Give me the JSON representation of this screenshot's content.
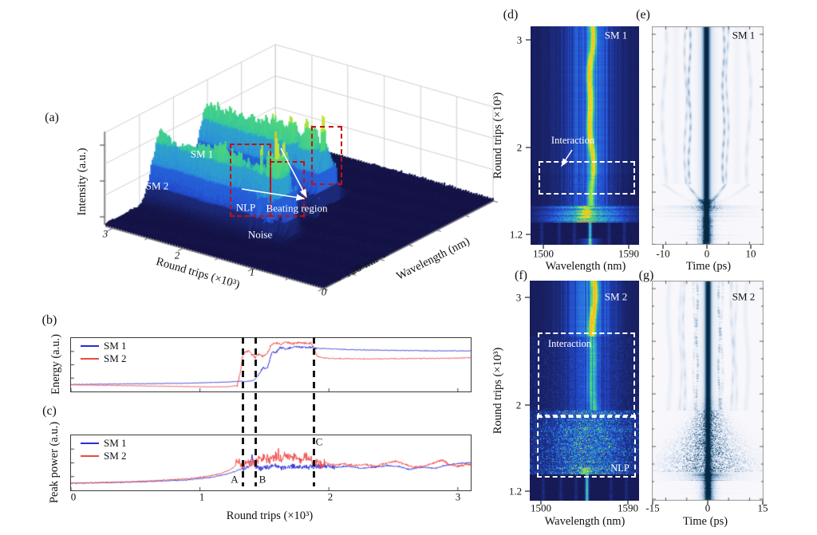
{
  "panels": {
    "a": {
      "tag": "(a)",
      "z_label": "Intensity (a.u.)",
      "x_label": "Round trips (×10³)",
      "x_ticks": [
        "3",
        "2",
        "1",
        "0"
      ],
      "w_label": "Wavelength (nm)",
      "span_arrow_fwd": "→",
      "span_text": "120 nm",
      "span_arrow_back": "←",
      "ann_sm1": "SM 1",
      "ann_sm2": "SM 2",
      "ann_nlp": "NLP",
      "ann_beating": "Beating region",
      "ann_noise": "Noise"
    },
    "b": {
      "tag": "(b)",
      "y_label": "Energy (a.u.)",
      "legend": [
        {
          "label": "SM 1"
        },
        {
          "label": "SM 2"
        }
      ]
    },
    "c": {
      "tag": "(c)",
      "y_label": "Peak power (a.u.)",
      "x_label": "Round trips (×10³)",
      "x_ticks": [
        "0",
        "1",
        "2",
        "3"
      ],
      "legend": [
        {
          "label": "SM 1"
        },
        {
          "label": "SM 2"
        }
      ],
      "marker_a": "A",
      "marker_b": "B",
      "marker_c": "C"
    },
    "d": {
      "tag": "(d)",
      "y_label": "Round trips (×10³)",
      "y_ticks": [
        "3",
        "2",
        "1.2"
      ],
      "x_ticks": [
        "1500",
        "1590"
      ],
      "x_label": "Wavelength (nm)",
      "series_label": "SM 1",
      "ann_interaction": "Interaction"
    },
    "e": {
      "tag": "(e)",
      "x_ticks": [
        "-10",
        "0",
        "10"
      ],
      "x_label": "Time (ps)",
      "series_label": "SM 1"
    },
    "f": {
      "tag": "(f)",
      "y_label": "Round trips (×10³)",
      "y_ticks": [
        "3",
        "2",
        "1.2"
      ],
      "x_ticks": [
        "1500",
        "1590"
      ],
      "x_label": "Wavelength (nm)",
      "series_label": "SM 2",
      "ann_interaction": "Interaction",
      "ann_nlp": "NLP"
    },
    "g": {
      "tag": "(g)",
      "x_ticks": [
        "-15",
        "0",
        "15"
      ],
      "x_label": "Time (ps)",
      "series_label": "SM 2"
    }
  },
  "colors": {
    "sm1": "#2b2bd5",
    "sm2": "#ef4747",
    "marker_dash": "#151515",
    "red_box": "#c41010",
    "white_annotation": "#ffffff"
  },
  "chart_data": [
    {
      "id": "a",
      "type": "area",
      "subtype": "3d-waterfall-surface",
      "x_axis": {
        "label": "Round trips (×10³)",
        "range": [
          0,
          3.1
        ],
        "ticks": [
          3,
          2,
          1,
          0
        ]
      },
      "wavelength_axis": {
        "label": "Wavelength (nm)",
        "span_annotation": "120 nm"
      },
      "z_axis": {
        "label": "Intensity (a.u.)"
      },
      "annotations": [
        "SM 1",
        "SM 2",
        "NLP",
        "Beating region",
        "Noise"
      ],
      "features": {
        "noise_floor_roundtrips": [
          0,
          1.3
        ],
        "nlp_burst_roundtrips": [
          1.3,
          1.62
        ],
        "sm2_ridge_onset_roundtrips": 1.3,
        "sm1_ridge_onset_roundtrips": 1.39,
        "beating_region_roundtrips": [
          1.4,
          1.95
        ],
        "stable_soliton_molecules_roundtrips": [
          1.95,
          3.1
        ]
      }
    },
    {
      "id": "b",
      "type": "line",
      "ylabel": "Energy (a.u.)",
      "xlim": [
        0,
        3.1
      ],
      "event_marker_x": [
        1.335,
        1.435,
        1.885
      ],
      "series": [
        {
          "name": "SM 1",
          "color": "#2b2bd5",
          "points": [
            [
              0,
              0.13
            ],
            [
              0.5,
              0.145
            ],
            [
              0.9,
              0.155
            ],
            [
              1.2,
              0.175
            ],
            [
              1.3,
              0.19
            ],
            [
              1.36,
              0.185
            ],
            [
              1.42,
              0.21
            ],
            [
              1.46,
              0.33
            ],
            [
              1.49,
              0.45
            ],
            [
              1.52,
              0.42
            ],
            [
              1.545,
              0.62
            ],
            [
              1.56,
              0.75
            ],
            [
              1.585,
              0.72
            ],
            [
              1.62,
              0.82
            ],
            [
              1.68,
              0.8
            ],
            [
              1.74,
              0.84
            ],
            [
              1.8,
              0.82
            ],
            [
              1.86,
              0.83
            ],
            [
              1.9,
              0.81
            ],
            [
              2.0,
              0.8
            ],
            [
              2.2,
              0.78
            ],
            [
              2.5,
              0.77
            ],
            [
              2.8,
              0.76
            ],
            [
              3.08,
              0.76
            ]
          ]
        },
        {
          "name": "SM 2",
          "color": "#ef4747",
          "points": [
            [
              0,
              0.125
            ],
            [
              0.4,
              0.11
            ],
            [
              0.8,
              0.095
            ],
            [
              1.1,
              0.085
            ],
            [
              1.22,
              0.09
            ],
            [
              1.29,
              0.11
            ],
            [
              1.315,
              0.38
            ],
            [
              1.33,
              0.66
            ],
            [
              1.35,
              0.74
            ],
            [
              1.38,
              0.76
            ],
            [
              1.4,
              0.7
            ],
            [
              1.43,
              0.64
            ],
            [
              1.46,
              0.71
            ],
            [
              1.49,
              0.66
            ],
            [
              1.52,
              0.7
            ],
            [
              1.55,
              0.86
            ],
            [
              1.59,
              0.91
            ],
            [
              1.63,
              0.88
            ],
            [
              1.67,
              0.92
            ],
            [
              1.72,
              0.89
            ],
            [
              1.77,
              0.92
            ],
            [
              1.82,
              0.9
            ],
            [
              1.86,
              0.91
            ],
            [
              1.885,
              0.8
            ],
            [
              1.91,
              0.66
            ],
            [
              1.95,
              0.63
            ],
            [
              2.05,
              0.615
            ],
            [
              2.3,
              0.61
            ],
            [
              2.6,
              0.615
            ],
            [
              2.9,
              0.62
            ],
            [
              3.08,
              0.63
            ]
          ]
        }
      ]
    },
    {
      "id": "c",
      "type": "line",
      "ylabel": "Peak power (a.u.)",
      "xlabel": "Round trips (×10³)",
      "xlim": [
        0,
        3.1
      ],
      "x_ticks": [
        0,
        1,
        2,
        3
      ],
      "event_markers": [
        {
          "label": "A",
          "x": 1.335
        },
        {
          "label": "B",
          "x": 1.435
        },
        {
          "label": "C",
          "x": 1.885
        }
      ],
      "series": [
        {
          "name": "SM 1",
          "color": "#2b2bd5",
          "points": [
            [
              0,
              0.13
            ],
            [
              0.3,
              0.14
            ],
            [
              0.6,
              0.16
            ],
            [
              0.9,
              0.19
            ],
            [
              1.1,
              0.24
            ],
            [
              1.2,
              0.29
            ],
            [
              1.28,
              0.35
            ],
            [
              1.33,
              0.4
            ],
            [
              1.37,
              0.42
            ],
            [
              1.405,
              0.6
            ],
            [
              1.43,
              0.44
            ],
            [
              1.47,
              0.39
            ],
            [
              1.52,
              0.42
            ],
            [
              1.58,
              0.44
            ],
            [
              1.65,
              0.41
            ],
            [
              1.72,
              0.44
            ],
            [
              1.8,
              0.42
            ],
            [
              1.88,
              0.43
            ],
            [
              1.95,
              0.44
            ],
            [
              2.05,
              0.42
            ],
            [
              2.15,
              0.44
            ],
            [
              2.25,
              0.4
            ],
            [
              2.35,
              0.42
            ],
            [
              2.45,
              0.45
            ],
            [
              2.55,
              0.43
            ],
            [
              2.62,
              0.38
            ],
            [
              2.72,
              0.42
            ],
            [
              2.82,
              0.4
            ],
            [
              2.92,
              0.46
            ],
            [
              3.0,
              0.49
            ],
            [
              3.08,
              0.5
            ]
          ]
        },
        {
          "name": "SM 2",
          "color": "#ef4747",
          "points": [
            [
              0,
              0.13
            ],
            [
              0.3,
              0.145
            ],
            [
              0.6,
              0.17
            ],
            [
              0.9,
              0.21
            ],
            [
              1.05,
              0.25
            ],
            [
              1.15,
              0.3
            ],
            [
              1.22,
              0.36
            ],
            [
              1.27,
              0.43
            ],
            [
              1.295,
              0.55
            ],
            [
              1.31,
              0.5
            ],
            [
              1.34,
              0.45
            ],
            [
              1.38,
              0.48
            ],
            [
              1.42,
              0.52
            ],
            [
              1.46,
              0.56
            ],
            [
              1.5,
              0.6
            ],
            [
              1.54,
              0.57
            ],
            [
              1.58,
              0.62
            ],
            [
              1.62,
              0.59
            ],
            [
              1.66,
              0.63
            ],
            [
              1.7,
              0.6
            ],
            [
              1.74,
              0.62
            ],
            [
              1.78,
              0.58
            ],
            [
              1.82,
              0.61
            ],
            [
              1.86,
              0.56
            ],
            [
              1.9,
              0.52
            ],
            [
              1.94,
              0.47
            ],
            [
              1.98,
              0.49
            ],
            [
              2.05,
              0.46
            ],
            [
              2.12,
              0.48
            ],
            [
              2.2,
              0.45
            ],
            [
              2.28,
              0.47
            ],
            [
              2.36,
              0.43
            ],
            [
              2.44,
              0.49
            ],
            [
              2.52,
              0.53
            ],
            [
              2.58,
              0.48
            ],
            [
              2.66,
              0.42
            ],
            [
              2.74,
              0.44
            ],
            [
              2.82,
              0.5
            ],
            [
              2.88,
              0.55
            ],
            [
              2.94,
              0.46
            ],
            [
              3.0,
              0.44
            ],
            [
              3.08,
              0.47
            ]
          ]
        }
      ]
    },
    {
      "id": "d",
      "type": "heatmap",
      "label": "SM 1",
      "xlabel": "Wavelength (nm)",
      "xlim": [
        1490,
        1600
      ],
      "x_ticks": [
        1500,
        1590
      ],
      "ylabel": "Round trips (×10³)",
      "ylim": [
        1.1,
        3.13
      ],
      "y_ticks": [
        3,
        2,
        1.2
      ],
      "annotations": [
        {
          "text": "Interaction",
          "roundtrip_range": [
            1.59,
            1.87
          ]
        }
      ],
      "features": {
        "main_peak_nm": 1551,
        "qswitch_burst_roundtrips": [
          1.31,
          1.46
        ],
        "cw_noise_roundtrips": [
          1.1,
          1.31
        ]
      }
    },
    {
      "id": "e",
      "type": "heatmap",
      "label": "SM 1",
      "xlabel": "Time (ps)",
      "xlim": [
        -12.4,
        13.1
      ],
      "x_ticks": [
        -10,
        0,
        10
      ],
      "ylim": [
        1.1,
        3.13
      ],
      "features": {
        "main_pulse_ps": 0,
        "soliton_traces_ps": [
          -9.6,
          -4.8,
          -3.9,
          3.9,
          4.8,
          9.6
        ],
        "convergence_roundtrips": [
          1.47,
          1.66
        ]
      }
    },
    {
      "id": "f",
      "type": "heatmap",
      "label": "SM 2",
      "xlabel": "Wavelength (nm)",
      "xlim": [
        1490,
        1600
      ],
      "x_ticks": [
        1500,
        1590
      ],
      "ylabel": "Round trips (×10³)",
      "ylim": [
        1.11,
        3.16
      ],
      "y_ticks": [
        3,
        2,
        1.2
      ],
      "annotations": [
        {
          "text": "Interaction",
          "roundtrip_range": [
            1.95,
            2.67
          ]
        },
        {
          "text": "NLP",
          "roundtrip_range": [
            1.36,
            1.95
          ]
        }
      ],
      "features": {
        "main_peak_nm": 1553,
        "nlp_roundtrips": [
          1.36,
          1.95
        ],
        "cw_noise_roundtrips": [
          1.11,
          1.36
        ]
      }
    },
    {
      "id": "g",
      "type": "heatmap",
      "label": "SM 2",
      "xlabel": "Time (ps)",
      "xlim": [
        -15,
        15
      ],
      "x_ticks": [
        -15,
        0,
        15
      ],
      "ylim": [
        1.11,
        3.16
      ],
      "features": {
        "main_pulse_ps": 0,
        "soliton_traces_ps": [
          -7.4,
          -6.5,
          -3.7,
          -3.0,
          3.0,
          3.7,
          6.5,
          7.4
        ],
        "nlp_speckle_roundtrips": [
          1.38,
          1.93
        ]
      }
    }
  ]
}
